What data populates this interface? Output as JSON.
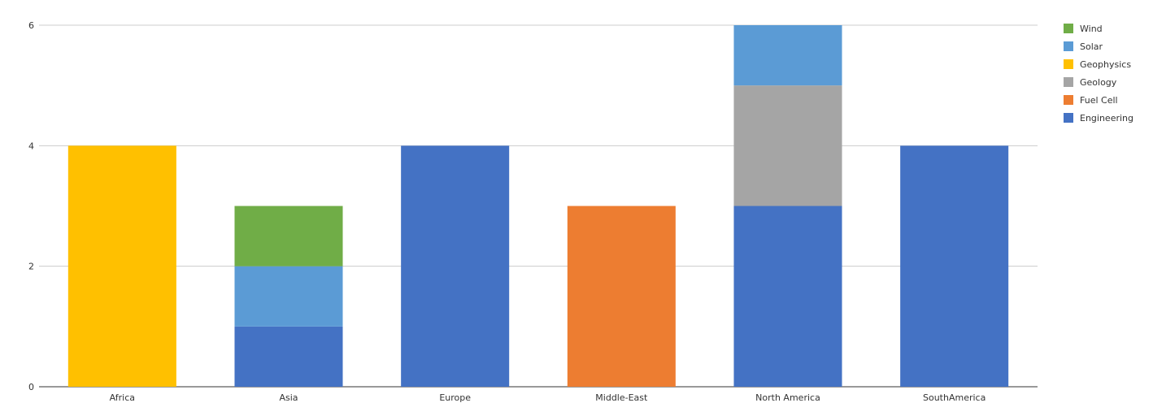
{
  "chart_data": {
    "type": "bar",
    "stacked": true,
    "categories": [
      "Africa",
      "Asia",
      "Europe",
      "Middle-East",
      "North America",
      "SouthAmerica"
    ],
    "series": [
      {
        "name": "Engineering",
        "color": "#4472c4",
        "values": [
          0,
          1,
          4,
          0,
          3,
          4
        ]
      },
      {
        "name": "Fuel Cell",
        "color": "#ed7d31",
        "values": [
          0,
          0,
          0,
          3,
          0,
          0
        ]
      },
      {
        "name": "Geology",
        "color": "#a5a5a5",
        "values": [
          0,
          0,
          0,
          0,
          2,
          0
        ]
      },
      {
        "name": "Geophysics",
        "color": "#ffc000",
        "values": [
          4,
          0,
          0,
          0,
          0,
          0
        ]
      },
      {
        "name": "Solar",
        "color": "#5b9bd5",
        "values": [
          0,
          1,
          0,
          0,
          1,
          0
        ]
      },
      {
        "name": "Wind",
        "color": "#70ad47",
        "values": [
          0,
          1,
          0,
          0,
          0,
          0
        ]
      }
    ],
    "yticks": [
      "0",
      "2",
      "4",
      "6"
    ],
    "ylim": [
      0,
      6
    ],
    "grid": true,
    "legend_position": "right"
  },
  "legend_order": [
    "Wind",
    "Solar",
    "Geophysics",
    "Geology",
    "Fuel Cell",
    "Engineering"
  ]
}
